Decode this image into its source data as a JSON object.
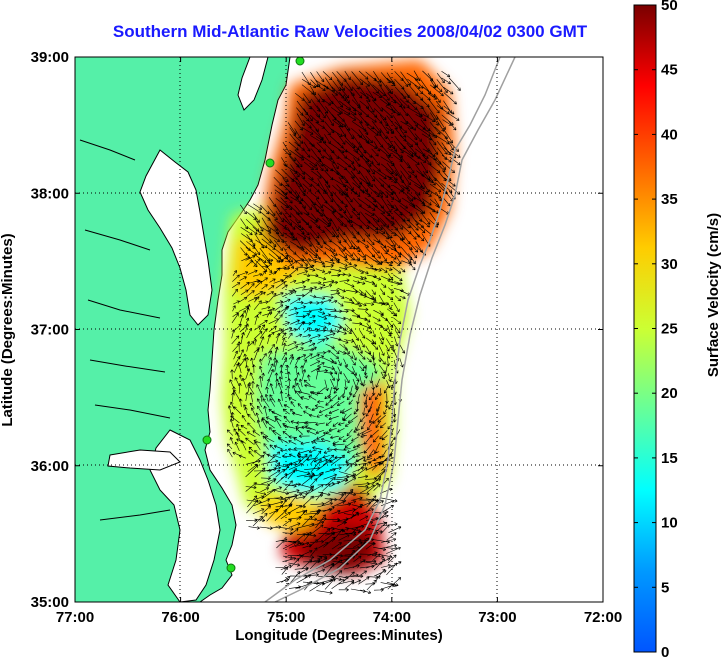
{
  "title": "Southern Mid-Atlantic Raw Velocities 2008/04/02 0300 GMT",
  "map": {
    "xlabel": "Longitude (Degrees:Minutes)",
    "ylabel": "Latitude (Degrees:Minutes)",
    "xticks": [
      "77:00",
      "76:00",
      "75:00",
      "74:00",
      "73:00",
      "72:00"
    ],
    "yticks": [
      "39:00",
      "38:00",
      "37:00",
      "36:00",
      "35:00"
    ],
    "lon_range": [
      -77,
      -72
    ],
    "lat_range": [
      35,
      39
    ],
    "grid": "dotted",
    "land_color": "#55f0a8",
    "ocean_color": "#ffffff",
    "bathymetry_color": "#a0a0a0",
    "station_color": "#22dd22"
  },
  "colorbar": {
    "label": "Surface Velocity (cm/s)",
    "ticks": [
      "0",
      "5",
      "10",
      "15",
      "20",
      "25",
      "30",
      "35",
      "40",
      "45",
      "50"
    ],
    "range": [
      0,
      50
    ],
    "colormap": "jet"
  }
}
